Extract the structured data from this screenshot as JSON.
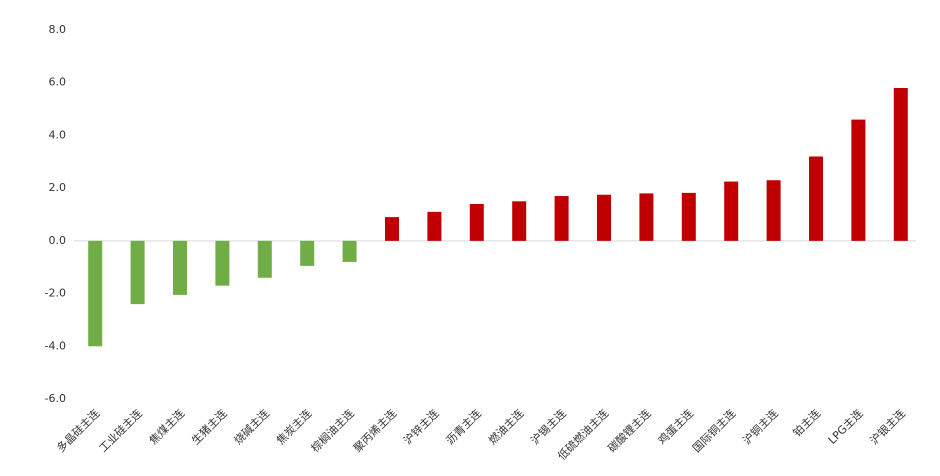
{
  "chart_data": {
    "type": "bar",
    "categories": [
      "多晶硅主连",
      "工业硅主连",
      "焦煤主连",
      "生猪主连",
      "烧碱主连",
      "焦炭主连",
      "棕榈油主连",
      "聚丙烯主连",
      "沪锌主连",
      "沥青主连",
      "燃油主连",
      "沪锡主连",
      "低硫燃油主连",
      "碳酸锂主连",
      "鸡蛋主连",
      "国际铜主连",
      "沪铜主连",
      "铂主连",
      "LPG主连",
      "沪银主连"
    ],
    "values": [
      -4.0,
      -2.4,
      -2.05,
      -1.7,
      -1.4,
      -0.95,
      -0.8,
      0.9,
      1.1,
      1.4,
      1.5,
      1.7,
      1.75,
      1.8,
      1.82,
      2.25,
      2.3,
      3.2,
      4.6,
      5.8
    ],
    "colors": [
      "#70ad47",
      "#70ad47",
      "#70ad47",
      "#70ad47",
      "#70ad47",
      "#70ad47",
      "#70ad47",
      "#c00000",
      "#c00000",
      "#c00000",
      "#c00000",
      "#c00000",
      "#c00000",
      "#c00000",
      "#c00000",
      "#c00000",
      "#c00000",
      "#c00000",
      "#c00000",
      "#c00000"
    ],
    "ylim": [
      -6,
      8
    ],
    "yticks": [
      {
        "value": -6,
        "label": "-6.0"
      },
      {
        "value": -4,
        "label": "-4.0"
      },
      {
        "value": -2,
        "label": "-2.0"
      },
      {
        "value": 0,
        "label": "0.0"
      },
      {
        "value": 2,
        "label": "2.0"
      },
      {
        "value": 4,
        "label": "4.0"
      },
      {
        "value": 6,
        "label": "6.0"
      },
      {
        "value": 8,
        "label": "8.0"
      }
    ],
    "grid": false
  }
}
